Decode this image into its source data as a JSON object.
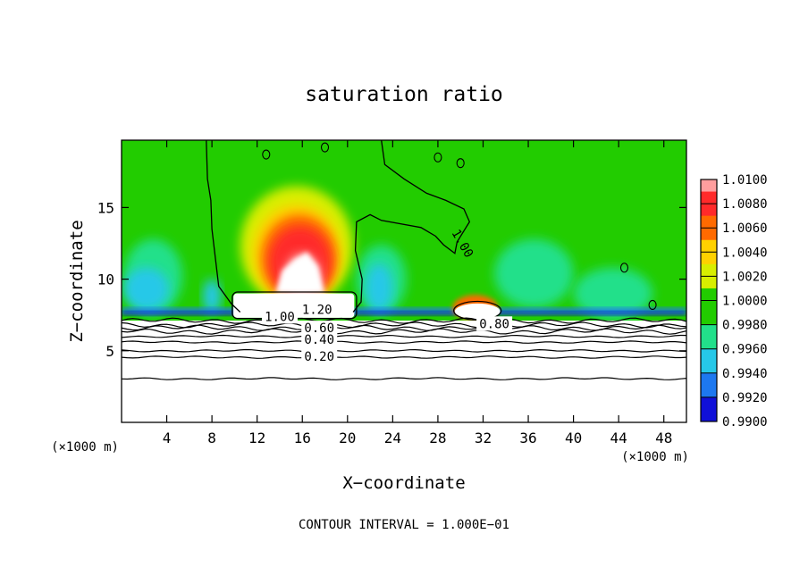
{
  "chart_data": {
    "type": "heatmap",
    "title": "saturation ratio",
    "xlabel": "X−coordinate",
    "ylabel": "Z−coordinate",
    "x_unit_left": "(×1000 m)",
    "x_unit_right": "(×1000 m)",
    "xlim": [
      0,
      50
    ],
    "ylim": [
      0,
      19.7
    ],
    "xticks": [
      4,
      8,
      12,
      16,
      20,
      24,
      28,
      32,
      36,
      40,
      44,
      48
    ],
    "yticks": [
      5,
      10,
      15
    ],
    "footnote": "CONTOUR INTERVAL = 1.000E−01",
    "colorbar": {
      "levels": [
        "1.0100",
        "1.0080",
        "1.0060",
        "1.0040",
        "1.0020",
        "1.0000",
        "0.9980",
        "0.9960",
        "0.9940",
        "0.9920",
        "0.9900"
      ],
      "colors": [
        "#ff9e9e",
        "#ff2a2a",
        "#ff6a00",
        "#ffd100",
        "#d8ee00",
        "#22cc00",
        "#22e08a",
        "#26c8e8",
        "#1d78f0",
        "#1010d8",
        "#7a10b0"
      ]
    },
    "contour_labels": [
      {
        "text": "1.00",
        "x": 30.2,
        "y": 12.5,
        "angle": 60
      },
      {
        "text": "1.20",
        "x": 17.3,
        "y": 7.9,
        "angle": 0
      },
      {
        "text": "1.00",
        "x": 14.0,
        "y": 7.4,
        "angle": 0
      },
      {
        "text": "0.60",
        "x": 17.5,
        "y": 6.6,
        "angle": 0
      },
      {
        "text": "0.40",
        "x": 17.5,
        "y": 5.8,
        "angle": 0
      },
      {
        "text": "0.20",
        "x": 17.5,
        "y": 4.6,
        "angle": 0
      },
      {
        "text": "0.80",
        "x": 33.0,
        "y": 6.9,
        "angle": 0
      }
    ],
    "contour_layers": [
      {
        "level": "0.90",
        "y": 7.1
      },
      {
        "level": "0.80",
        "y": 6.8
      },
      {
        "level": "0.70",
        "y": 6.6
      },
      {
        "level": "0.60",
        "y": 6.35
      },
      {
        "level": "0.50",
        "y": 6.0
      },
      {
        "level": "0.40",
        "y": 5.6
      },
      {
        "level": "0.30",
        "y": 5.0
      },
      {
        "level": "0.20",
        "y": 4.55
      },
      {
        "level": "0.10",
        "y": 3.05
      }
    ],
    "features": [
      {
        "name": "supersaturated-plume",
        "x_center": 15.5,
        "z_base": 9.0,
        "z_top": 15.5,
        "max_ratio": 1.01
      },
      {
        "name": "cloud-cap-region",
        "x_from": 10,
        "x_to": 20.5,
        "z_from": 7.5,
        "z_to": 9.0,
        "value": "> 1.20"
      },
      {
        "name": "small-cloud",
        "x_center": 31.5,
        "z_center": 8.0,
        "max_ratio": 1.004
      },
      {
        "name": "subsaturated-boundary",
        "z": 7.6,
        "min_ratio": 0.992
      }
    ]
  }
}
